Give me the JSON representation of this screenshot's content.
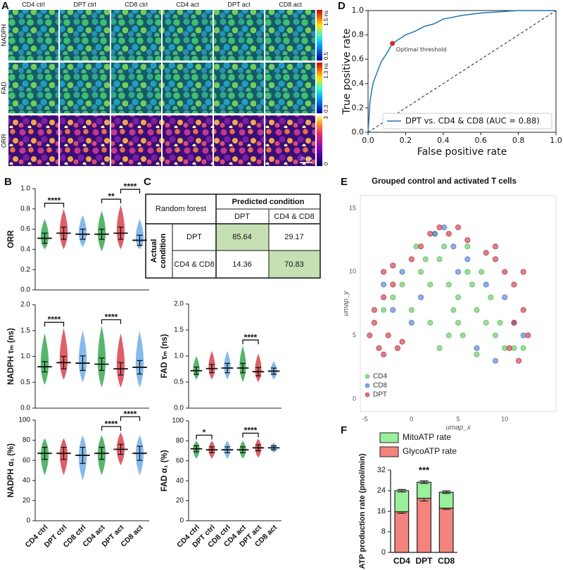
{
  "panel_letters": [
    "A",
    "B",
    "C",
    "D",
    "E",
    "F"
  ],
  "image_grid": {
    "columns": [
      "CD4 ctrl",
      "DPT ctrl",
      "CD8 ctrl",
      "CD4 act",
      "DPT act",
      "CD8 act"
    ],
    "rows": [
      "NADPH",
      "FAD",
      "ORR"
    ],
    "colorbars": [
      {
        "max": "1.5 ns",
        "min": "0.5"
      },
      {
        "max": "1.3 ns",
        "min": "0.3"
      },
      {
        "max": "3",
        "min": "0"
      }
    ],
    "scale_bar": "20 μm"
  },
  "table": {
    "title": "Random forest",
    "header": "Predicted condition",
    "columns": [
      "DPT",
      "CD4 & CD8"
    ],
    "row_header": "Actual condition",
    "rows": [
      {
        "label": "DPT",
        "cells": [
          85.64,
          29.17
        ]
      },
      {
        "label": "CD4 & CD8",
        "cells": [
          14.36,
          70.83
        ]
      }
    ]
  },
  "chart_data": [
    {
      "type": "line",
      "xlabel": "False positive rate",
      "ylabel": "True positive rate",
      "x": [
        0,
        0.005,
        0.01,
        0.02,
        0.03,
        0.05,
        0.07,
        0.1,
        0.13,
        0.17,
        0.2,
        0.25,
        0.3,
        0.35,
        0.4,
        0.5,
        0.6,
        0.7,
        0.8,
        1.0
      ],
      "series": [
        {
          "name": "DPT vs. CD4 & CD8 (AUC = 0.88)",
          "color": "#1f77b4",
          "values": [
            0,
            0.12,
            0.25,
            0.35,
            0.42,
            0.5,
            0.58,
            0.65,
            0.73,
            0.77,
            0.8,
            0.83,
            0.87,
            0.89,
            0.93,
            0.96,
            0.98,
            0.99,
            1.0,
            1.0
          ]
        }
      ],
      "annotation": {
        "text": "Optimal threshold",
        "x": 0.13,
        "y": 0.73,
        "color": "#d62728"
      },
      "xlim": [
        0,
        1
      ],
      "ylim": [
        0,
        1
      ],
      "xticks": [
        {
          "value": 0,
          "label": "0.0"
        },
        0.2,
        0.4,
        0.6,
        0.8,
        {
          "value": 1,
          "label": "1.0"
        }
      ],
      "yticks": [
        {
          "value": 0,
          "label": "0.0"
        },
        0.2,
        0.4,
        0.6,
        0.8,
        {
          "value": 1,
          "label": "1.0"
        }
      ],
      "legend": "lower right"
    },
    {
      "type": "strip",
      "ylabel": "ORR",
      "categories": [
        null,
        null,
        null,
        null,
        null,
        null
      ],
      "colors": [
        "#1f9e3a",
        "#d42a35",
        "#5ea3e6",
        "#1f9e3a",
        "#d42a35",
        "#5ea3e6"
      ],
      "median": [
        0.51,
        0.56,
        0.55,
        0.55,
        0.56,
        0.49
      ],
      "sd": [
        0.05,
        0.06,
        0.05,
        0.05,
        0.06,
        0.05
      ],
      "range": [
        [
          0.4,
          0.7
        ],
        [
          0.4,
          0.8
        ],
        [
          0.42,
          0.74
        ],
        [
          0.38,
          0.78
        ],
        [
          0.4,
          0.84
        ],
        [
          0.4,
          0.7
        ]
      ],
      "ylim": [
        0,
        1
      ],
      "yticks": [
        {
          "value": 0,
          "label": "0.0"
        },
        0.2,
        0.4,
        0.6,
        0.8,
        {
          "value": 1,
          "label": "1.0"
        }
      ],
      "brackets": [
        {
          "between": [
            0,
            1
          ],
          "label": "****"
        },
        {
          "between": [
            3,
            4
          ],
          "label": "**"
        },
        {
          "between": [
            4,
            5
          ],
          "label": "****"
        }
      ]
    },
    {
      "type": "strip",
      "ylabel": "NADPH τₘ (ns)",
      "categories": [
        null,
        null,
        null,
        null,
        null,
        null
      ],
      "colors": [
        "#1f9e3a",
        "#d42a35",
        "#5ea3e6",
        "#1f9e3a",
        "#d42a35",
        "#5ea3e6"
      ],
      "median": [
        0.8,
        0.88,
        0.87,
        0.85,
        0.76,
        0.79
      ],
      "sd": [
        0.1,
        0.12,
        0.14,
        0.12,
        0.12,
        0.13
      ],
      "range": [
        [
          0.45,
          1.45
        ],
        [
          0.55,
          1.55
        ],
        [
          0.5,
          1.5
        ],
        [
          0.4,
          1.6
        ],
        [
          0.4,
          1.45
        ],
        [
          0.4,
          1.5
        ]
      ],
      "ylim": [
        0,
        2
      ],
      "yticks": [
        {
          "value": 0,
          "label": "0.0"
        },
        0.5,
        {
          "value": 1,
          "label": "1.0"
        },
        1.5,
        {
          "value": 2,
          "label": "2.0"
        }
      ],
      "brackets": [
        {
          "between": [
            0,
            1
          ],
          "label": "****"
        },
        {
          "between": [
            3,
            4
          ],
          "label": "****"
        }
      ]
    },
    {
      "type": "strip",
      "ylabel": "NADPH α₁ (%)",
      "categories": [
        "CD4 ctrl",
        "DPT ctrl",
        "CD8 ctrl",
        "CD4 act",
        "DPT act",
        "CD8 act"
      ],
      "colors": [
        "#1f9e3a",
        "#d42a35",
        "#5ea3e6",
        "#1f9e3a",
        "#d42a35",
        "#5ea3e6"
      ],
      "median": [
        67,
        67,
        65,
        67,
        71,
        67
      ],
      "sd": [
        6,
        6,
        8,
        6,
        5,
        7
      ],
      "range": [
        [
          45,
          82
        ],
        [
          45,
          82
        ],
        [
          40,
          85
        ],
        [
          45,
          85
        ],
        [
          55,
          88
        ],
        [
          45,
          85
        ]
      ],
      "ylim": [
        0,
        100
      ],
      "yticks": [
        0,
        20,
        40,
        60,
        80,
        100
      ],
      "brackets": [
        {
          "between": [
            3,
            4
          ],
          "label": "****"
        },
        {
          "between": [
            4,
            5
          ],
          "label": "****"
        }
      ]
    },
    {
      "type": "strip",
      "ylabel": "FAD τₘ (ns)",
      "categories": [
        null,
        null,
        null,
        null,
        null,
        null
      ],
      "colors": [
        "#1f9e3a",
        "#d42a35",
        "#5ea3e6",
        "#1f9e3a",
        "#d42a35",
        "#5ea3e6"
      ],
      "median": [
        0.72,
        0.76,
        0.77,
        0.77,
        0.7,
        0.71
      ],
      "sd": [
        0.07,
        0.08,
        0.09,
        0.09,
        0.08,
        0.06
      ],
      "range": [
        [
          0.55,
          1.0
        ],
        [
          0.55,
          1.1
        ],
        [
          0.55,
          1.1
        ],
        [
          0.5,
          1.2
        ],
        [
          0.5,
          1.05
        ],
        [
          0.55,
          0.9
        ]
      ],
      "ylim": [
        0,
        2
      ],
      "yticks": [
        {
          "value": 0,
          "label": "0.0"
        },
        0.5,
        {
          "value": 1,
          "label": "1.0"
        },
        1.5,
        {
          "value": 2,
          "label": "2.0"
        }
      ],
      "brackets": [
        {
          "between": [
            3,
            4
          ],
          "label": "****"
        }
      ]
    },
    {
      "type": "strip",
      "ylabel": "FAD α₁ (%)",
      "categories": [
        "CD4 ctrl",
        "DPT ctrl",
        "CD8 ctrl",
        "CD4 act",
        "DPT act",
        "CD8 act"
      ],
      "colors": [
        "#1f9e3a",
        "#d42a35",
        "#5ea3e6",
        "#1f9e3a",
        "#d42a35",
        "#5ea3e6"
      ],
      "median": [
        72,
        71,
        71,
        71,
        73,
        73
      ],
      "sd": [
        3,
        3,
        3,
        3,
        3,
        2
      ],
      "range": [
        [
          62,
          80
        ],
        [
          62,
          80
        ],
        [
          62,
          80
        ],
        [
          62,
          80
        ],
        [
          63,
          82
        ],
        [
          68,
          78
        ]
      ],
      "ylim": [
        0,
        100
      ],
      "yticks": [
        0,
        20,
        40,
        60,
        80,
        100
      ],
      "brackets": [
        {
          "between": [
            0,
            1
          ],
          "label": "*"
        },
        {
          "between": [
            3,
            4
          ],
          "label": "****"
        }
      ]
    },
    {
      "type": "scatter",
      "title": "Grouped control and activated T cells",
      "xlabel": "umap_x",
      "ylabel": "umap_y",
      "series": [
        {
          "name": "CD4",
          "color": "#5cbf5a",
          "x": [
            -2,
            -1,
            0,
            1,
            2,
            3,
            4,
            5,
            6,
            7,
            8,
            9,
            10,
            11,
            0.5,
            1.5,
            2.5,
            3.5,
            4.5,
            5.5,
            6.5,
            7.5,
            8.5,
            9.5,
            3,
            4,
            5,
            6,
            2,
            7,
            -3,
            12
          ],
          "y": [
            8,
            9,
            7,
            10,
            6,
            11,
            9,
            8,
            10,
            7,
            6,
            5,
            4,
            4,
            12,
            11,
            13,
            12,
            7,
            5,
            9,
            10,
            8,
            6,
            4,
            5,
            6,
            12,
            9,
            3.5,
            7,
            4
          ]
        },
        {
          "name": "CD8",
          "color": "#4a78c8",
          "x": [
            -3,
            -1,
            1,
            2.5,
            3.5,
            4.5,
            6,
            8,
            10,
            11,
            12,
            9,
            5,
            0,
            -2,
            7
          ],
          "y": [
            9,
            10,
            8,
            13,
            13.5,
            12,
            11,
            9,
            8,
            6,
            5,
            3,
            10,
            6,
            7,
            4
          ]
        },
        {
          "name": "DPT",
          "color": "#c0303a",
          "x": [
            -4,
            -3.5,
            -3,
            -2.5,
            -2,
            -1.5,
            -4,
            -3,
            -2,
            -1,
            0,
            1,
            2,
            3,
            4,
            5,
            6,
            9,
            10,
            11,
            12,
            12.5,
            11.5,
            10.5,
            12,
            11,
            8,
            9,
            -4.5,
            -3
          ],
          "y": [
            6,
            4,
            8,
            5,
            9,
            4,
            7,
            10,
            10.5,
            4.5,
            11,
            12,
            13,
            13.5,
            13,
            13.5,
            12.5,
            11,
            10,
            9,
            7,
            5,
            3,
            4,
            10,
            6,
            11.5,
            12,
            5,
            3.5
          ]
        }
      ],
      "xlim": [
        -5.5,
        15.5
      ],
      "ylim": [
        -1,
        16
      ],
      "xticks": [
        -5,
        0,
        5,
        10
      ],
      "yticks": [
        0,
        5,
        10,
        15
      ],
      "legend": "lower left"
    },
    {
      "type": "bar",
      "stacked": true,
      "ylabel": "ATP production rate (pmol/min)",
      "categories": [
        "CD4",
        "DPT",
        "CD8"
      ],
      "series": [
        {
          "name": "GlycoATP rate",
          "color": "#f4837d",
          "values": [
            15.8,
            21.0,
            17.2
          ],
          "errors": [
            0.6,
            1.0,
            0.5
          ]
        },
        {
          "name": "MitoATP rate",
          "color": "#98f09a",
          "values": [
            8.2,
            6.3,
            6.2
          ],
          "errors": [
            0.5,
            0.5,
            0.5
          ]
        }
      ],
      "significance": [
        null,
        "***",
        null
      ],
      "ylim": [
        0,
        32
      ],
      "yticks": [
        0,
        8,
        16,
        24,
        32
      ],
      "legend": "top"
    }
  ]
}
